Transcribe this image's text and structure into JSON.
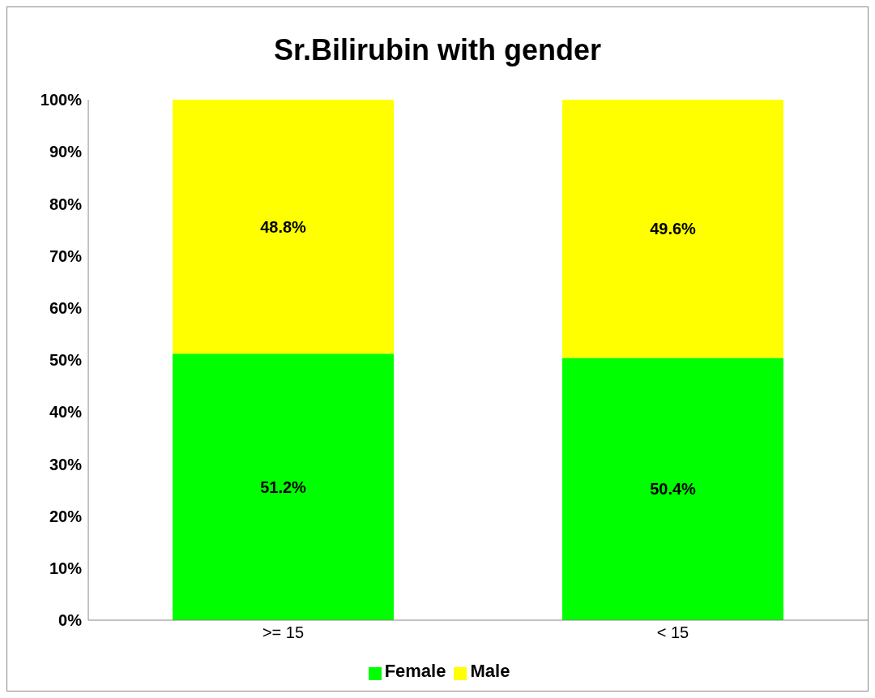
{
  "chart_data": {
    "type": "bar",
    "title": "Sr.Bilirubin with gender",
    "categories": [
      ">= 15",
      "< 15"
    ],
    "stacked": true,
    "series": [
      {
        "name": "Female",
        "color": "#00ff00",
        "values": [
          51.2,
          50.4
        ],
        "value_labels": [
          "51.2%",
          "50.4%"
        ]
      },
      {
        "name": "Male",
        "color": "#ffff00",
        "values": [
          48.8,
          49.6
        ],
        "value_labels": [
          "48.8%",
          "49.6%"
        ]
      }
    ],
    "ylim": [
      0,
      100
    ],
    "yticks": [
      {
        "value": 0,
        "label": "0%"
      },
      {
        "value": 10,
        "label": "10%"
      },
      {
        "value": 20,
        "label": "20%"
      },
      {
        "value": 30,
        "label": "30%"
      },
      {
        "value": 40,
        "label": "40%"
      },
      {
        "value": 50,
        "label": "50%"
      },
      {
        "value": 60,
        "label": "60%"
      },
      {
        "value": 70,
        "label": "70%"
      },
      {
        "value": 80,
        "label": "80%"
      },
      {
        "value": 90,
        "label": "90%"
      },
      {
        "value": 100,
        "label": "100%"
      }
    ],
    "grid": false,
    "legend": "bottom"
  }
}
